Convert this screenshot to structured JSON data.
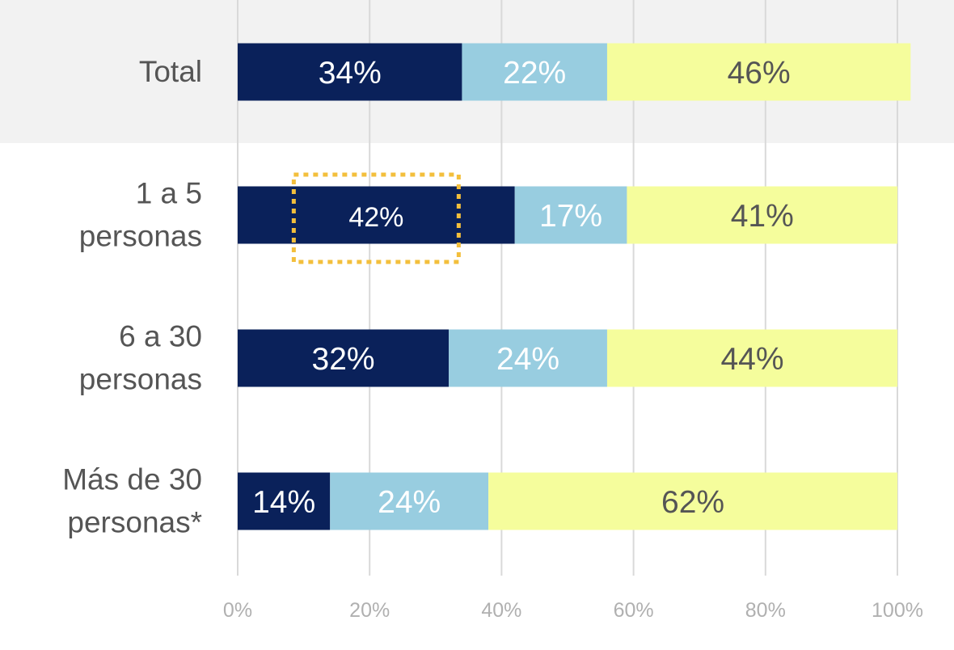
{
  "chart_data": {
    "type": "bar",
    "orientation": "horizontal",
    "stacked": true,
    "categories": [
      [
        "Total"
      ],
      [
        "1 a 5",
        "personas"
      ],
      [
        "6 a 30",
        "personas"
      ],
      [
        "Más de 30",
        "personas*"
      ]
    ],
    "series": [
      {
        "name": "serie-1",
        "color": "#0a215a",
        "label_color": "#ffffff",
        "values": [
          34,
          42,
          32,
          14
        ]
      },
      {
        "name": "serie-2",
        "color": "#98cde0",
        "label_color": "#ffffff",
        "values": [
          22,
          17,
          24,
          24
        ]
      },
      {
        "name": "serie-3",
        "color": "#f5fd9c",
        "label_color": "#555555",
        "values": [
          46,
          41,
          44,
          62
        ]
      }
    ],
    "value_suffix": "%",
    "xlim": [
      0,
      100
    ],
    "xticks": [
      0,
      20,
      40,
      60,
      80,
      100
    ],
    "xtick_labels": [
      "0%",
      "20%",
      "40%",
      "60%",
      "80%",
      "100%"
    ],
    "grid": true,
    "highlight_category": "Total",
    "highlight_band_color": "#f2f2f2",
    "annotation": {
      "category_index": 1,
      "series_index": 0,
      "style": "dotted-box",
      "color": "#f3bf3c"
    },
    "title": "",
    "xlabel": "",
    "ylabel": ""
  }
}
